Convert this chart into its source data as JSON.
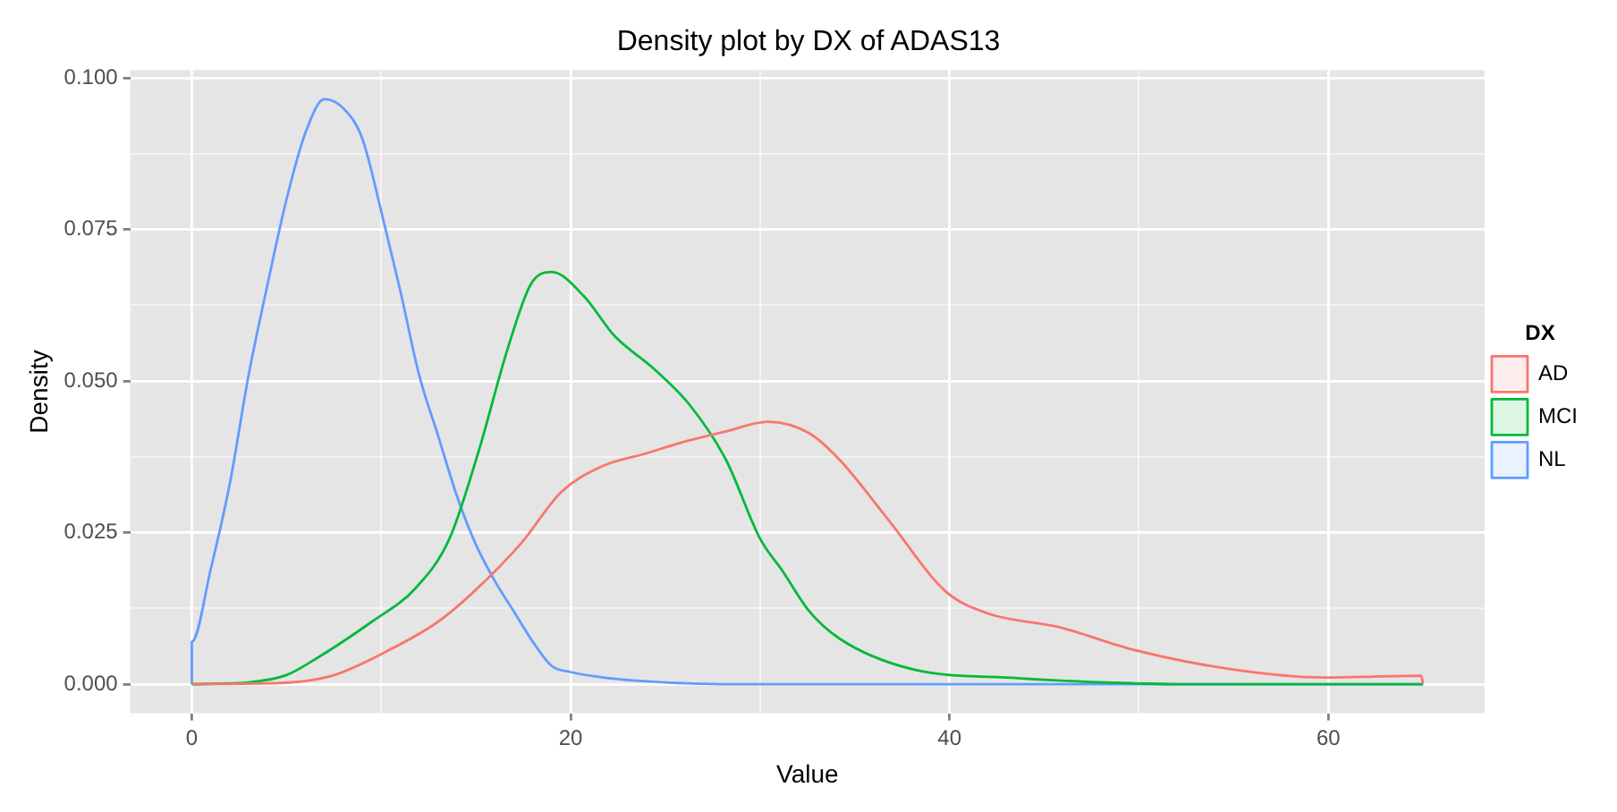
{
  "chart_data": {
    "type": "line",
    "title": "Density plot by DX of ADAS13",
    "xlabel": "Value",
    "ylabel": "Density",
    "legend_title": "DX",
    "legend": "right",
    "grid": true,
    "marker": "none",
    "line_style": "solid",
    "xlim": [
      -3.25,
      68.25
    ],
    "xticks": [
      0,
      {
        "value": 10,
        "label": null
      },
      20,
      {
        "value": 30,
        "label": null
      },
      40,
      {
        "value": 50,
        "label": null
      },
      60
    ],
    "ylim": [
      -0.0048,
      0.1013
    ],
    "yticks": [
      {
        "value": 0,
        "label": "0.000"
      },
      {
        "value": 0.0125,
        "label": null
      },
      {
        "value": 0.025,
        "label": "0.025"
      },
      {
        "value": 0.0375,
        "label": null
      },
      {
        "value": 0.05,
        "label": "0.050"
      },
      {
        "value": 0.0625,
        "label": null
      },
      {
        "value": 0.075,
        "label": "0.075"
      },
      {
        "value": 0.0875,
        "label": null
      },
      {
        "value": 0.1,
        "label": "0.100"
      }
    ],
    "series": [
      {
        "name": "AD",
        "color": "#f8766d",
        "x": [
          0,
          4.7,
          7.4,
          10.4,
          13,
          14.8,
          17.4,
          19.5,
          21.7,
          23.9,
          26,
          28.2,
          30.4,
          32.6,
          34.2,
          36.8,
          39.8,
          42,
          45.8,
          49.8,
          54.8,
          59.8,
          64.9,
          65
        ],
        "values": [
          0,
          0.0002,
          0.0014,
          0.0056,
          0.0103,
          0.015,
          0.0233,
          0.0317,
          0.036,
          0.038,
          0.04,
          0.0417,
          0.0433,
          0.0414,
          0.037,
          0.027,
          0.0153,
          0.0117,
          0.0094,
          0.0056,
          0.0025,
          0.0011,
          0.0014,
          0
        ]
      },
      {
        "name": "MCI",
        "color": "#00ba38",
        "x": [
          0,
          3,
          5,
          6.4,
          9.5,
          11.8,
          13.6,
          15.1,
          16.7,
          17.9,
          19,
          20.7,
          22.3,
          24.4,
          26.3,
          28.2,
          30,
          31.2,
          32.6,
          34.2,
          38,
          43.6,
          49,
          52,
          65
        ],
        "values": [
          0,
          0.0003,
          0.0015,
          0.0039,
          0.0103,
          0.0158,
          0.024,
          0.038,
          0.0556,
          0.066,
          0.068,
          0.064,
          0.0575,
          0.052,
          0.046,
          0.037,
          0.024,
          0.0186,
          0.012,
          0.0075,
          0.0025,
          0.001,
          0.0002,
          0,
          0
        ]
      },
      {
        "name": "NL",
        "color": "#619cff",
        "x": [
          0,
          0,
          1,
          2,
          3,
          4,
          5,
          6,
          7,
          8,
          9,
          10,
          11,
          12,
          13,
          14,
          15,
          16,
          17,
          18,
          19,
          20,
          22,
          25,
          28,
          65
        ],
        "values": [
          0,
          0.007,
          0.019,
          0.033,
          0.051,
          0.066,
          0.08,
          0.091,
          0.0965,
          0.095,
          0.09,
          0.078,
          0.065,
          0.051,
          0.041,
          0.031,
          0.023,
          0.017,
          0.012,
          0.007,
          0.003,
          0.002,
          0.001,
          0.0003,
          0,
          0
        ]
      }
    ]
  }
}
